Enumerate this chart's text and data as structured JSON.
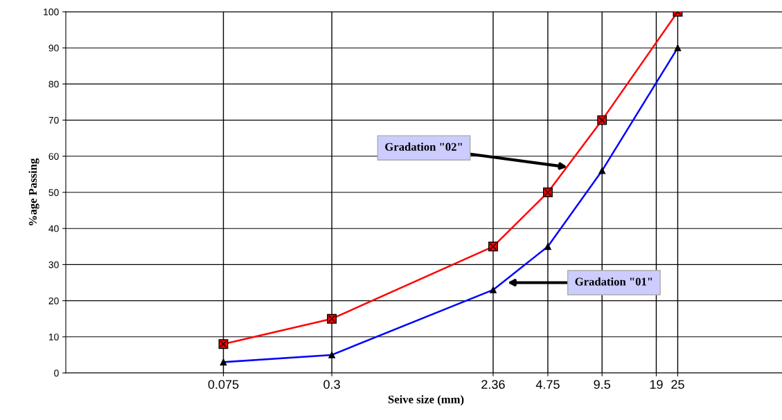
{
  "chart_data": {
    "type": "line",
    "xlabel": "Seive size (mm)",
    "ylabel": "%age Passing",
    "log": "x",
    "xlim": [
      0.01,
      100
    ],
    "xticks": [
      0.075,
      0.3,
      2.36,
      4.75,
      9.5,
      19,
      25
    ],
    "ylim": [
      0,
      100
    ],
    "yticks": [
      0,
      10,
      20,
      30,
      40,
      50,
      60,
      70,
      80,
      90,
      100
    ],
    "grid": "y",
    "legend": false,
    "series": [
      {
        "color": "#ff0000",
        "marker": "square",
        "x": [
          0.075,
          0.3,
          2.36,
          4.75,
          9.5,
          25
        ],
        "values": [
          8,
          15,
          35,
          50,
          70,
          100
        ]
      },
      {
        "color": "#0000ff",
        "marker": "triangle",
        "x": [
          0.075,
          0.3,
          2.36,
          4.75,
          9.5,
          25
        ],
        "values": [
          3,
          5,
          23,
          35,
          56,
          90
        ]
      }
    ],
    "ref_lines": [
      {
        "axis": "x",
        "value": 0.075,
        "color": "#000000"
      },
      {
        "axis": "x",
        "value": 0.3,
        "color": "#000000"
      },
      {
        "axis": "x",
        "value": 2.36,
        "color": "#000000"
      },
      {
        "axis": "x",
        "value": 4.75,
        "color": "#000000"
      },
      {
        "axis": "x",
        "value": 9.5,
        "color": "#000000"
      },
      {
        "axis": "x",
        "value": 19,
        "color": "#000000"
      },
      {
        "axis": "x",
        "value": 25,
        "color": "#000000"
      }
    ],
    "annotations": [
      {
        "text": "Gradation \"02\"",
        "x": 6.1,
        "y": 57
      },
      {
        "text": "Gradation \"01\"",
        "x": 2.83,
        "y": 25
      }
    ]
  }
}
